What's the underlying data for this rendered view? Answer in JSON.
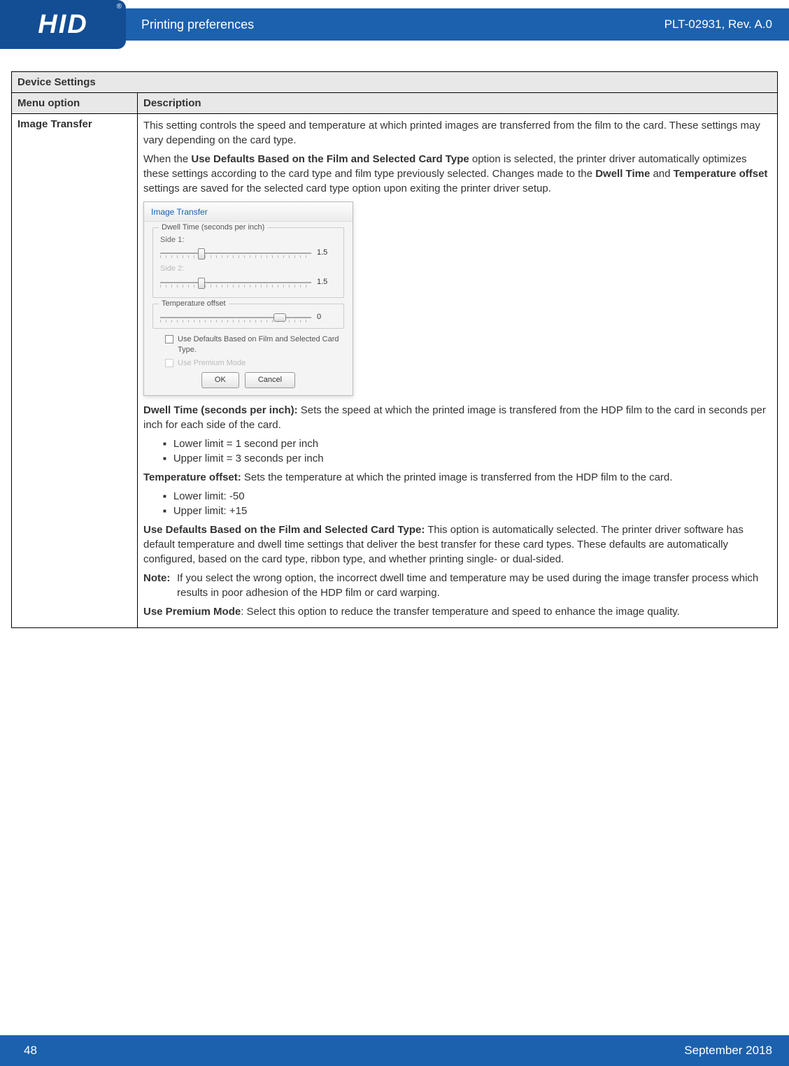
{
  "header": {
    "logo_text": "HID",
    "reg_mark": "®",
    "section_title": "Printing preferences",
    "doc_id": "PLT-02931, Rev. A.0"
  },
  "table": {
    "section_title": "Device Settings",
    "col_menu": "Menu option",
    "col_desc": "Description",
    "menu_option": "Image Transfer",
    "intro_para": "This setting controls the speed and temperature at which printed images are transferred from the film to the card. These settings may vary depending on the card type.",
    "intro2_pre": "When the ",
    "intro2_bold1": "Use Defaults Based on the Film and Selected Card Type",
    "intro2_mid": " option is selected, the printer driver automatically optimizes these settings according to the card type and film type previously selected. Changes made to the ",
    "intro2_bold2": "Dwell Time",
    "intro2_mid2": " and ",
    "intro2_bold3": "Temperature offset",
    "intro2_end": " settings are saved for the selected card type option upon exiting the printer driver setup.",
    "dwell_bold": "Dwell Time (seconds per inch):",
    "dwell_text": " Sets the speed at which the printed image is transfered from the HDP film to the card in seconds per inch for each side of the card.",
    "dwell_li1": "Lower limit = 1 second per inch",
    "dwell_li2": "Upper limit = 3 seconds per inch",
    "temp_bold": "Temperature offset:",
    "temp_text": " Sets the temperature at which the printed image is transferred from the HDP film to the card.",
    "temp_li1": "Lower limit: -50",
    "temp_li2": "Upper limit: +15",
    "usedef_bold": "Use Defaults Based on the Film and Selected Card Type:",
    "usedef_text": " This option is automatically selected. The printer driver software has default temperature and dwell time settings that deliver the best transfer for these card types. These defaults are automatically configured, based on the card type, ribbon type, and whether printing single- or dual-sided.",
    "note_label": "Note:",
    "note_text": "If you select the wrong option, the incorrect dwell time and temperature may be used during the image transfer process which results in poor adhesion of the HDP film or card warping.",
    "premium_bold": "Use Premium Mode",
    "premium_text": ": Select this option to reduce the transfer temperature and speed to enhance the image quality."
  },
  "dialog": {
    "title": "Image Transfer",
    "dwell_group": "Dwell Time (seconds per inch)",
    "side1_label": "Side 1:",
    "side1_value": "1.5",
    "side1_thumb_pct": 25,
    "side2_label": "Side 2:",
    "side2_value": "1.5",
    "side2_thumb_pct": 25,
    "temp_group": "Temperature offset",
    "temp_value": "0",
    "temp_thumb_pct": 75,
    "chk1": "Use Defaults Based on Film and Selected Card Type.",
    "chk2": "Use Premium Mode",
    "ok": "OK",
    "cancel": "Cancel"
  },
  "footer": {
    "page": "48",
    "date": "September 2018"
  },
  "colors": {
    "header_bar": "#1c61ad",
    "logo_bg": "#134d94",
    "table_header_bg": "#e8e8e8"
  }
}
